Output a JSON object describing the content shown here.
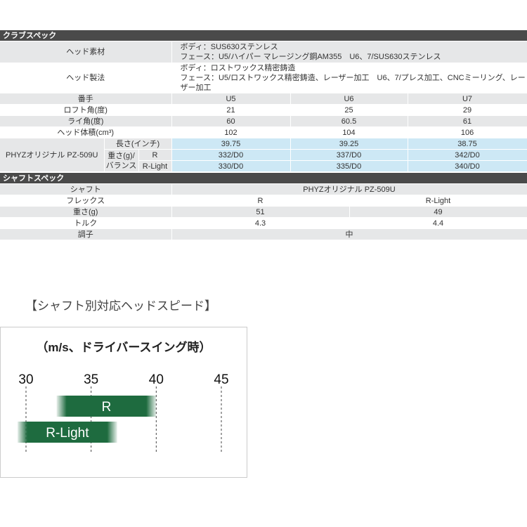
{
  "club_spec": {
    "title": "クラブスペック",
    "head_material": {
      "label": "ヘッド素材",
      "line1": "ボディ：SUS630ステンレス",
      "line2": "フェース：U5/ハイパー マレージング鋼AM355　U6、7/SUS630ステンレス"
    },
    "head_method": {
      "label": "ヘッド製法",
      "line1": "ボディ：ロストワックス精密鋳造",
      "line2": "フェース：U5/ロストワックス精密鋳造、レーザー加工　U6、7/プレス加工、CNCミーリング、レーザー加工"
    },
    "rows": [
      {
        "label": "番手",
        "values": [
          "U5",
          "U6",
          "U7"
        ]
      },
      {
        "label": "ロフト角(度)",
        "values": [
          "21",
          "25",
          "29"
        ]
      },
      {
        "label": "ライ角(度)",
        "values": [
          "60",
          "60.5",
          "61"
        ]
      },
      {
        "label": "ヘッド体積(cm³)",
        "values": [
          "102",
          "104",
          "106"
        ]
      }
    ],
    "shaft_block": {
      "name": "PHYZオリジナル PZ-509U",
      "length": {
        "label": "長さ(インチ)",
        "values": [
          "39.75",
          "39.25",
          "38.75"
        ]
      },
      "weight_label_1": "重さ(g)/",
      "weight_label_2": "バランス",
      "r": {
        "label": "R",
        "values": [
          "332/D0",
          "337/D0",
          "342/D0"
        ]
      },
      "rl": {
        "label": "R-Light",
        "values": [
          "330/D0",
          "335/D0",
          "340/D0"
        ]
      }
    }
  },
  "shaft_spec": {
    "title": "シャフトスペック",
    "shaft": {
      "label": "シャフト",
      "value": "PHYZオリジナル PZ-509U"
    },
    "flex": {
      "label": "フレックス",
      "values": [
        "R",
        "R-Light"
      ]
    },
    "weight": {
      "label": "重さ(g)",
      "values": [
        "51",
        "49"
      ]
    },
    "torque": {
      "label": "トルク",
      "values": [
        "4.3",
        "4.4"
      ]
    },
    "kick": {
      "label": "調子",
      "value": "中"
    }
  },
  "heading": "【シャフト別対応ヘッドスピード】",
  "chart_data": {
    "type": "bar",
    "orientation": "horizontal-range",
    "title": "（m/s、ドライバースイング時）",
    "ticks": [
      "30",
      "35",
      "40",
      "45"
    ],
    "xlim": [
      30,
      45
    ],
    "grid": true,
    "series": [
      {
        "name": "R",
        "range": [
          33,
          40
        ]
      },
      {
        "name": "R-Light",
        "range": [
          30,
          37
        ]
      }
    ],
    "color": "#1e6b3f"
  }
}
